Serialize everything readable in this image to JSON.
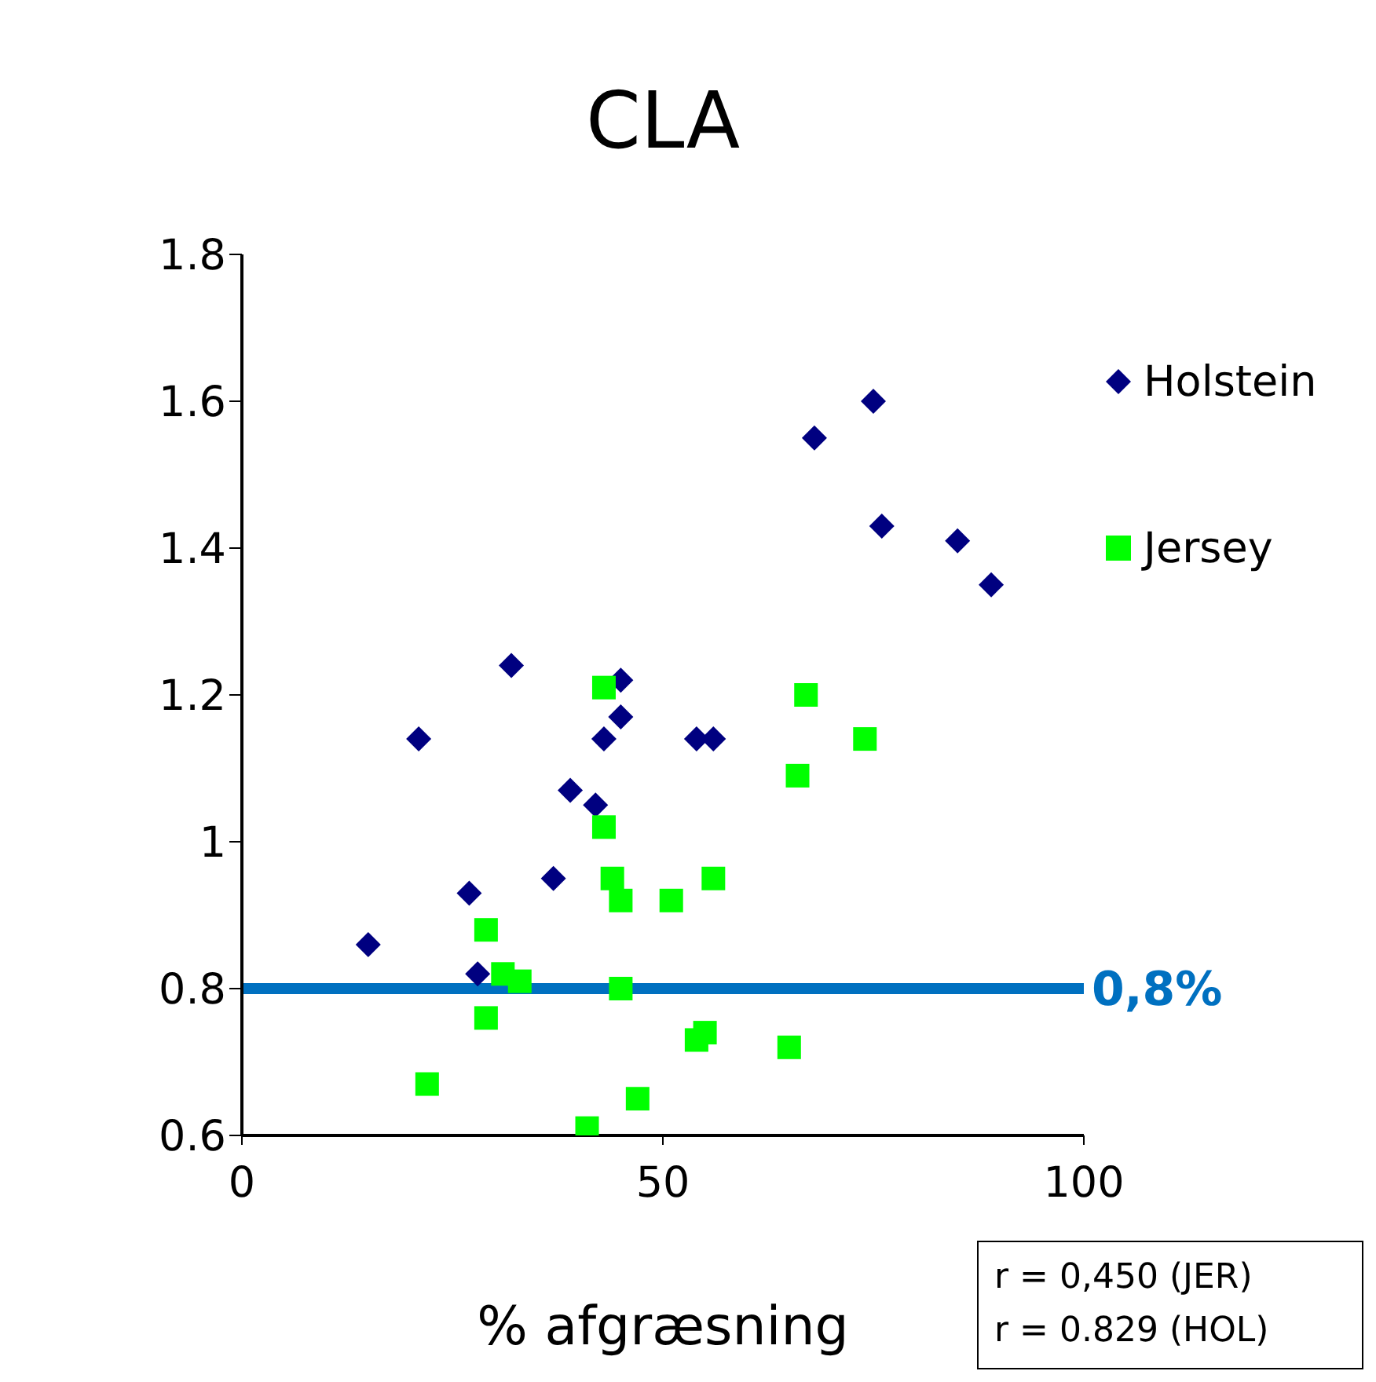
{
  "chart_data": {
    "type": "scatter",
    "title": "CLA",
    "xlabel": "% afgræsning",
    "xlim": [
      0,
      100
    ],
    "xticks": [
      0,
      50,
      100
    ],
    "ylim": [
      0.6,
      1.8
    ],
    "yticks": [
      0.6,
      0.8,
      1,
      1.2,
      1.4,
      1.6,
      1.8
    ],
    "grid": false,
    "legend": "top right",
    "series": [
      {
        "name": "Holstein",
        "color": "#000080",
        "marker": "diamond",
        "x": [
          15,
          21,
          27,
          28,
          32,
          37,
          39,
          42,
          43,
          45,
          45,
          54,
          56,
          68,
          75,
          76,
          85,
          89
        ],
        "values": [
          0.86,
          1.14,
          0.93,
          0.82,
          1.24,
          0.95,
          1.07,
          1.05,
          1.14,
          1.22,
          1.17,
          1.14,
          1.14,
          1.55,
          1.6,
          1.43,
          1.41,
          1.35
        ]
      },
      {
        "name": "Jersey",
        "color": "#00ff00",
        "marker": "square",
        "x": [
          22,
          29,
          29,
          31,
          33,
          41,
          43,
          43,
          44,
          45,
          45,
          47,
          51,
          54,
          55,
          56,
          65,
          66,
          67,
          74
        ],
        "values": [
          0.67,
          0.88,
          0.76,
          0.82,
          0.81,
          0.61,
          1.21,
          1.02,
          0.95,
          0.92,
          0.8,
          0.65,
          0.92,
          0.73,
          0.74,
          0.95,
          0.72,
          1.09,
          1.2,
          1.14
        ]
      }
    ],
    "ref_lines": [
      {
        "axis": "y",
        "value": 0.8,
        "label": "0,8%",
        "color": "#0070c0"
      }
    ],
    "annotations": [
      "r = 0,450 (JER)",
      "r = 0.829 (HOL)"
    ]
  }
}
